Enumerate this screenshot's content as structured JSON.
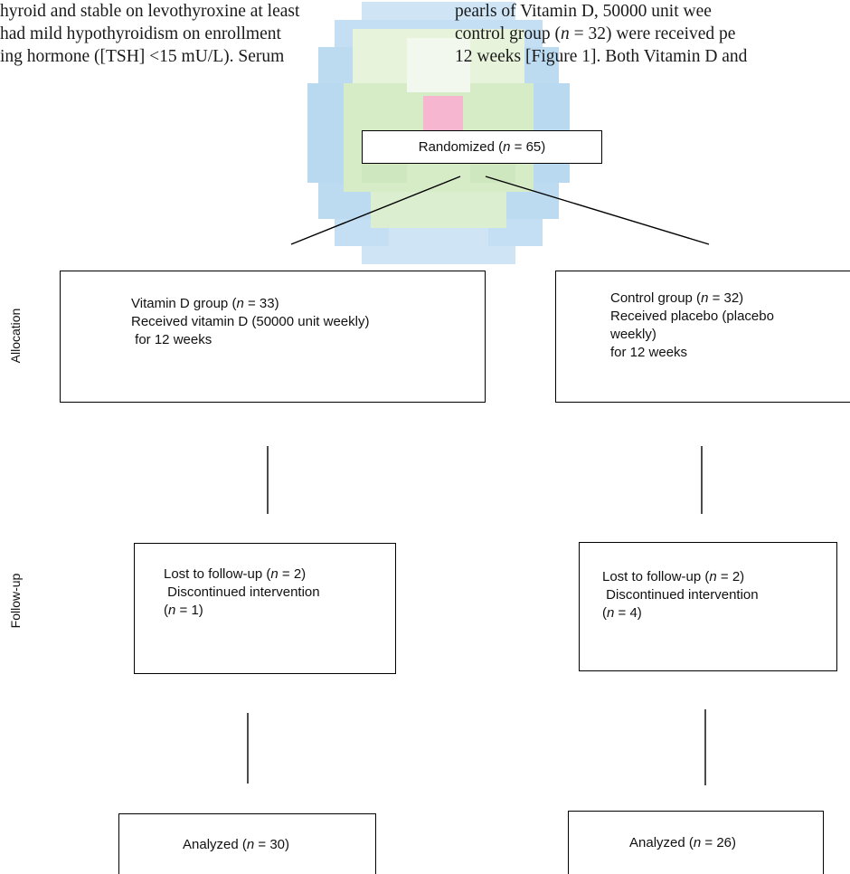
{
  "body_text": {
    "left_lines": [
      "hyroid and stable on levothyroxine at least",
      "had mild hypothyroidism on enrollment",
      "ing hormone ([TSH] <15 mU/L). Serum"
    ],
    "right_lines": [
      "pearls of Vitamin D, 50000 unit wee",
      "control group (n = 32) were received pe",
      "12 weeks [Figure 1]. Both Vitamin D and"
    ]
  },
  "flowchart": {
    "randomized": {
      "label": "Randomized (",
      "n": "n",
      "rest": " = 65)"
    },
    "stage_labels": {
      "allocation": "Allocation",
      "follow_up": "Follow-up"
    },
    "vitamin_group": {
      "line1_pre": "Vitamin D group (",
      "line1_n": "n",
      "line1_post": " = 33)",
      "line2": "Received vitamin D (50000 unit weekly)",
      "line3": " for 12 weeks"
    },
    "control_group": {
      "line1_pre": "Control group (",
      "line1_n": "n",
      "line1_post": " = 32)",
      "line2": "Received placebo (placebo",
      "line3": "weekly)",
      "line4": "for 12 weeks"
    },
    "vitamin_followup": {
      "line1_pre": "Lost to follow-up (",
      "line1_n": "n",
      "line1_post": " = 2)",
      "line2": " Discontinued intervention",
      "line3_pre": "(",
      "line3_n": "n",
      "line3_post": " = 1)"
    },
    "control_followup": {
      "line1_pre": "Lost to follow-up (",
      "line1_n": "n",
      "line1_post": " = 2)",
      "line2": " Discontinued intervention",
      "line3_pre": "(",
      "line3_n": "n",
      "line3_post": " = 4)"
    },
    "vitamin_analyzed": {
      "pre": "Analyzed (",
      "n": "n",
      "post": " = 30)"
    },
    "control_analyzed": {
      "pre": "Analyzed (",
      "n": "n",
      "post": " = 26)"
    }
  },
  "colors": {
    "watermark_blue": "#b9d9f0",
    "watermark_green": "#d6ecc7",
    "watermark_pink": "#f7b6cf",
    "line": "#000000"
  }
}
